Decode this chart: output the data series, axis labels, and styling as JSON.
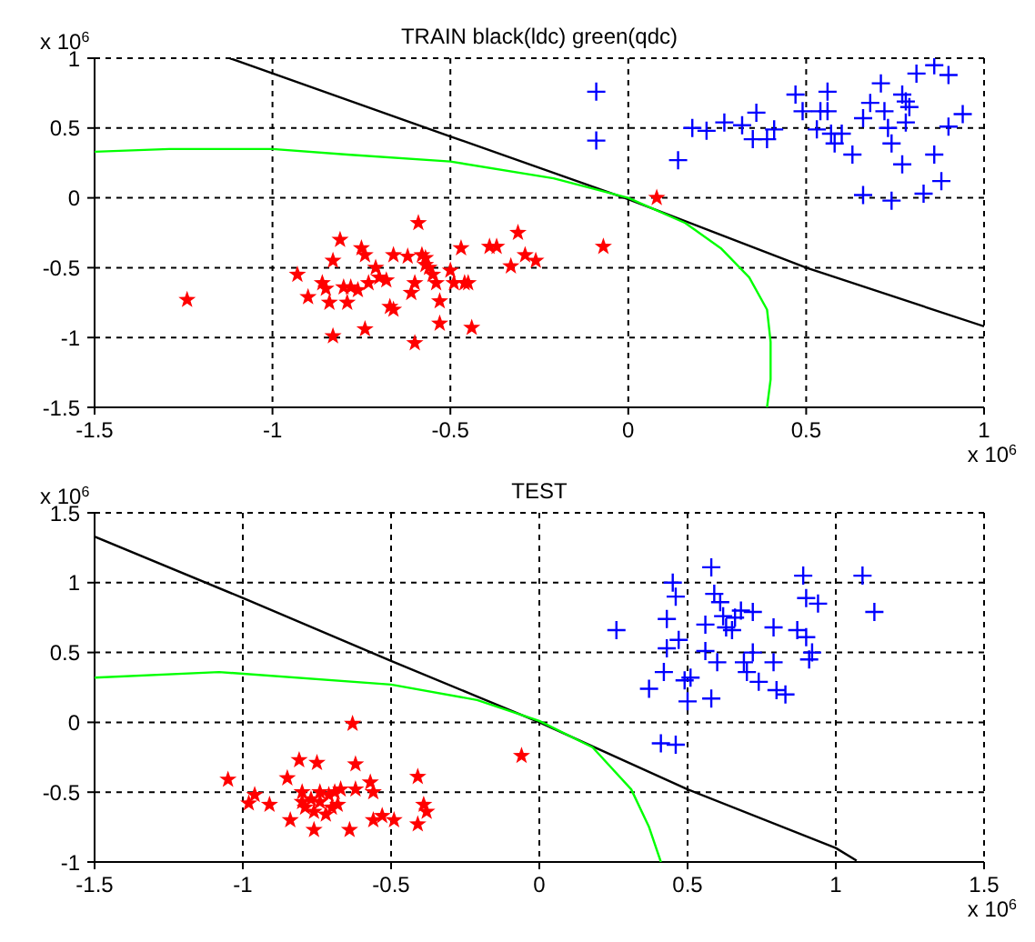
{
  "chart_data": [
    {
      "type": "scatter",
      "title": "TRAIN black(ldc) green(qdc)",
      "annotations": [
        "x 10$^{6}$",
        "x 10$^{6}$"
      ],
      "xlim": [
        -1.5,
        1
      ],
      "xticks": [
        -1.5,
        -1,
        -0.5,
        0,
        0.5,
        1
      ],
      "ylim": [
        -1.5,
        1
      ],
      "yticks": [
        -1.5,
        -1,
        -0.5,
        0,
        0.5,
        1
      ],
      "grid": true,
      "legend": false,
      "series": [
        {
          "color": "#ff0000",
          "marker": "star",
          "x": [
            -1.24,
            -0.93,
            -0.9,
            -0.86,
            -0.85,
            -0.84,
            -0.83,
            -0.81,
            -0.83,
            -0.8,
            -0.79,
            -0.78,
            -0.76,
            -0.75,
            -0.74,
            -0.74,
            -0.73,
            -0.71,
            -0.7,
            -0.68,
            -0.66,
            -0.67,
            -0.66,
            -0.62,
            -0.61,
            -0.6,
            -0.59,
            -0.58,
            -0.6,
            -0.57,
            -0.57,
            -0.56,
            -0.55,
            -0.54,
            -0.53,
            -0.53,
            -0.5,
            -0.49,
            -0.47,
            -0.46,
            -0.45,
            -0.44,
            -0.39,
            -0.37,
            -0.33,
            -0.31,
            -0.29,
            -0.26,
            -0.07,
            0.08
          ],
          "values": [
            -0.73,
            -0.55,
            -0.71,
            -0.61,
            -0.65,
            -0.75,
            -0.45,
            -0.3,
            -0.99,
            -0.64,
            -0.75,
            -0.64,
            -0.66,
            -0.36,
            -0.41,
            -0.94,
            -0.61,
            -0.5,
            -0.57,
            -0.59,
            -0.41,
            -0.78,
            -0.8,
            -0.42,
            -0.68,
            -0.61,
            -0.18,
            -0.41,
            -1.04,
            -0.43,
            -0.48,
            -0.5,
            -0.55,
            -0.61,
            -0.74,
            -0.9,
            -0.52,
            -0.61,
            -0.36,
            -0.61,
            -0.61,
            -0.93,
            -0.35,
            -0.35,
            -0.49,
            -0.25,
            -0.41,
            -0.45,
            -0.35,
            0.0
          ]
        },
        {
          "color": "#0000ff",
          "marker": "cross",
          "x": [
            -0.09,
            -0.09,
            0.14,
            0.18,
            0.22,
            0.27,
            0.32,
            0.36,
            0.35,
            0.39,
            0.41,
            0.47,
            0.49,
            0.53,
            0.54,
            0.56,
            0.56,
            0.57,
            0.58,
            0.6,
            0.63,
            0.66,
            0.66,
            0.68,
            0.71,
            0.72,
            0.73,
            0.74,
            0.74,
            0.77,
            0.77,
            0.78,
            0.78,
            0.79,
            0.81,
            0.83,
            0.86,
            0.86,
            0.88,
            0.9,
            0.9,
            0.94
          ],
          "values": [
            0.76,
            0.41,
            0.27,
            0.5,
            0.48,
            0.54,
            0.52,
            0.61,
            0.42,
            0.42,
            0.49,
            0.74,
            0.62,
            0.49,
            0.62,
            0.76,
            0.62,
            0.46,
            0.39,
            0.46,
            0.31,
            0.02,
            0.57,
            0.68,
            0.82,
            0.62,
            0.5,
            0.39,
            -0.02,
            0.24,
            0.74,
            0.69,
            0.54,
            0.65,
            0.89,
            0.03,
            0.95,
            0.31,
            0.12,
            0.51,
            0.88,
            0.6
          ]
        },
        {
          "type": "line",
          "color": "#000000",
          "marker": "none",
          "x": [
            -1.12,
            -0.5,
            0,
            0.5,
            1
          ],
          "values": [
            1,
            0.44,
            -0.01,
            -0.5,
            -0.92
          ]
        },
        {
          "type": "line",
          "color": "#00ff00",
          "marker": "none",
          "x": [
            -1.5,
            -1.29,
            -1,
            -0.79,
            -0.5,
            -0.21,
            0,
            0.16,
            0.26,
            0.34,
            0.39,
            0.4,
            0.4,
            0.39
          ],
          "values": [
            0.33,
            0.35,
            0.35,
            0.31,
            0.26,
            0.14,
            0,
            -0.18,
            -0.36,
            -0.57,
            -0.8,
            -1.03,
            -1.3,
            -1.5
          ]
        }
      ]
    },
    {
      "type": "scatter",
      "title": "TEST",
      "annotations": [
        "x 10$^{6}$",
        "x 10$^{6}$"
      ],
      "xlim": [
        -1.5,
        1.5
      ],
      "xticks": [
        -1.5,
        -1,
        -0.5,
        0,
        0.5,
        1,
        1.5
      ],
      "ylim": [
        -1,
        1.5
      ],
      "yticks": [
        -1,
        -0.5,
        0,
        0.5,
        1,
        1.5
      ],
      "grid": true,
      "legend": false,
      "series": [
        {
          "color": "#ff0000",
          "marker": "star",
          "x": [
            -1.05,
            -0.98,
            -0.96,
            -0.91,
            -0.85,
            -0.84,
            -0.81,
            -0.8,
            -0.8,
            -0.79,
            -0.77,
            -0.76,
            -0.76,
            -0.75,
            -0.74,
            -0.74,
            -0.72,
            -0.71,
            -0.7,
            -0.69,
            -0.68,
            -0.67,
            -0.64,
            -0.63,
            -0.62,
            -0.62,
            -0.57,
            -0.56,
            -0.56,
            -0.53,
            -0.49,
            -0.41,
            -0.41,
            -0.39,
            -0.38,
            -0.06
          ],
          "values": [
            -0.41,
            -0.58,
            -0.52,
            -0.59,
            -0.4,
            -0.7,
            -0.27,
            -0.5,
            -0.57,
            -0.61,
            -0.55,
            -0.64,
            -0.77,
            -0.29,
            -0.5,
            -0.57,
            -0.66,
            -0.52,
            -0.61,
            -0.5,
            -0.59,
            -0.48,
            -0.77,
            -0.01,
            -0.48,
            -0.3,
            -0.43,
            -0.5,
            -0.7,
            -0.67,
            -0.7,
            -0.73,
            -0.39,
            -0.59,
            -0.64,
            -0.24
          ]
        },
        {
          "color": "#0000ff",
          "marker": "cross",
          "x": [
            0.26,
            0.37,
            0.41,
            0.42,
            0.43,
            0.43,
            0.45,
            0.46,
            0.46,
            0.47,
            0.49,
            0.5,
            0.51,
            0.56,
            0.56,
            0.58,
            0.58,
            0.59,
            0.6,
            0.61,
            0.62,
            0.63,
            0.65,
            0.66,
            0.68,
            0.69,
            0.7,
            0.72,
            0.72,
            0.74,
            0.79,
            0.79,
            0.8,
            0.83,
            0.87,
            0.89,
            0.9,
            0.9,
            0.91,
            0.92,
            0.94,
            1.09,
            1.13
          ],
          "values": [
            0.66,
            0.24,
            -0.15,
            0.36,
            0.74,
            0.53,
            1.0,
            0.9,
            -0.16,
            0.59,
            0.3,
            0.15,
            0.32,
            0.7,
            0.51,
            1.11,
            0.17,
            0.92,
            0.43,
            0.86,
            0.76,
            0.68,
            0.66,
            0.75,
            0.8,
            0.43,
            0.36,
            0.79,
            0.5,
            0.29,
            0.43,
            0.68,
            0.23,
            0.2,
            0.66,
            1.05,
            0.61,
            0.89,
            0.45,
            0.5,
            0.85,
            1.05,
            0.79
          ]
        },
        {
          "type": "line",
          "color": "#000000",
          "marker": "none",
          "x": [
            -1.5,
            -1,
            -0.5,
            0,
            0.5,
            1,
            1.07
          ],
          "values": [
            1.33,
            0.89,
            0.44,
            0,
            -0.48,
            -0.9,
            -0.99
          ]
        },
        {
          "type": "line",
          "color": "#00ff00",
          "marker": "none",
          "x": [
            -1.5,
            -1.08,
            -0.5,
            -0.21,
            0,
            0.18,
            0.31,
            0.37,
            0.41
          ],
          "values": [
            0.32,
            0.36,
            0.27,
            0.16,
            0.01,
            -0.18,
            -0.48,
            -0.75,
            -1.0
          ]
        }
      ]
    }
  ]
}
